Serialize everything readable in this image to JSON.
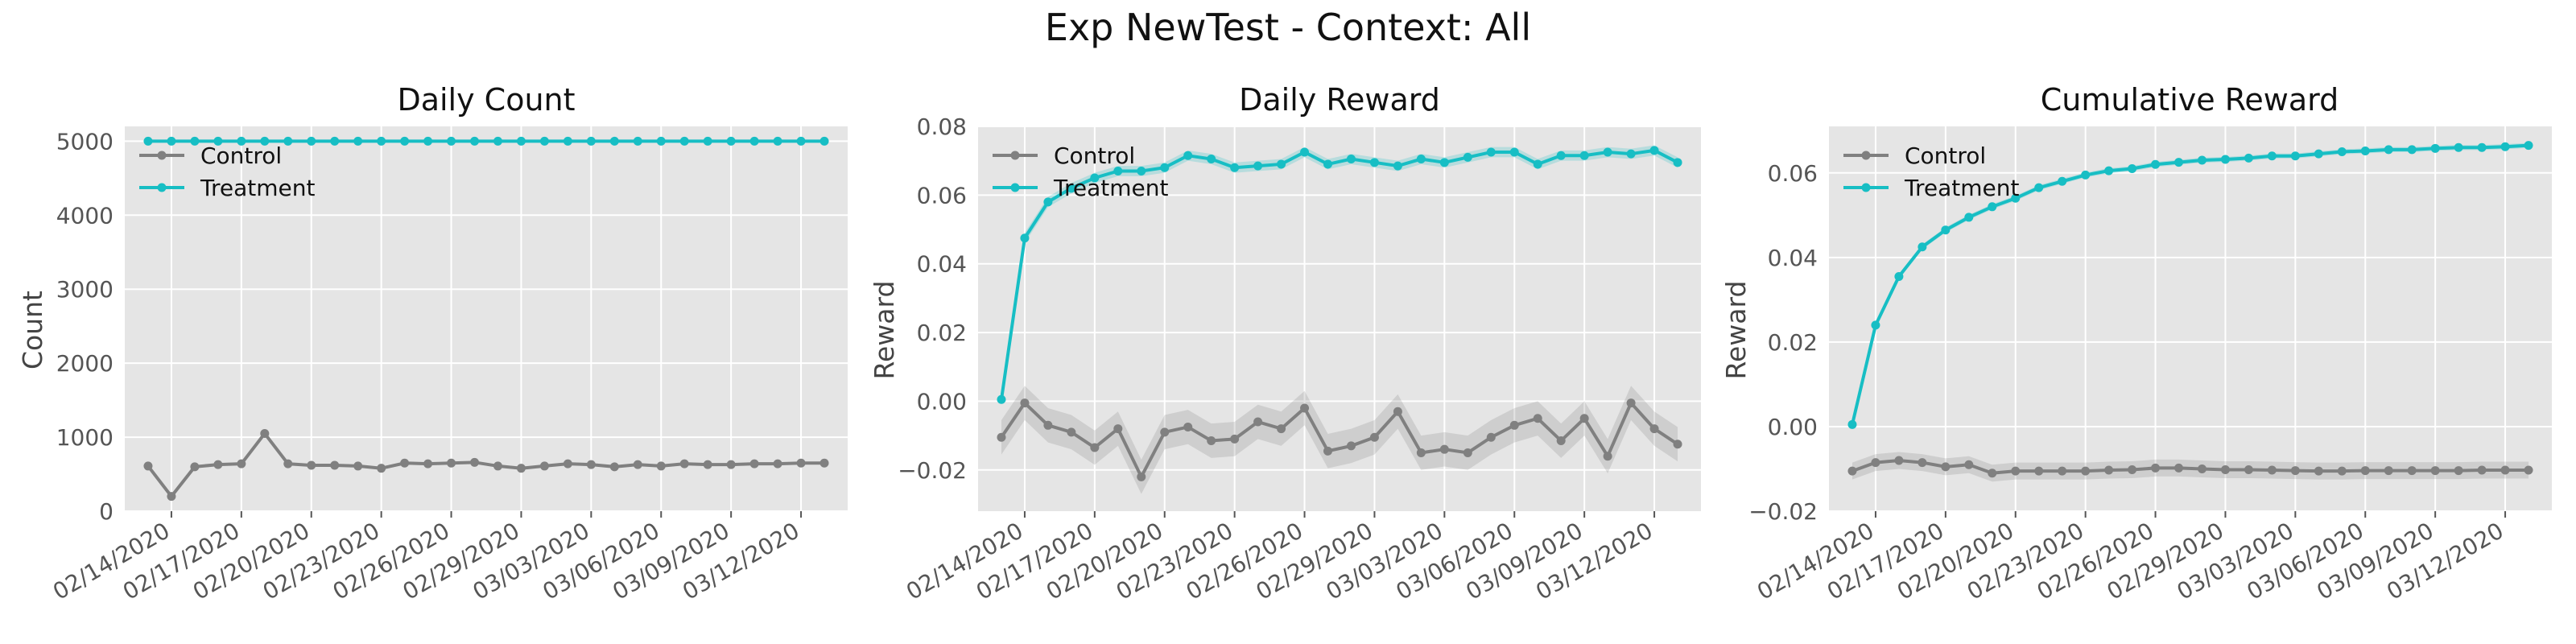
{
  "figure": {
    "title": "Exp NewTest - Context: All"
  },
  "colors": {
    "control": "#808080",
    "treatment": "#17bec4",
    "panel_bg": "#e5e5e5",
    "grid": "#ffffff"
  },
  "chart_data": [
    {
      "type": "line",
      "title": "Daily Count",
      "xlabel": "",
      "ylabel": "Count",
      "x": [
        "02/13/2020",
        "02/14/2020",
        "02/15/2020",
        "02/16/2020",
        "02/17/2020",
        "02/18/2020",
        "02/19/2020",
        "02/20/2020",
        "02/21/2020",
        "02/22/2020",
        "02/23/2020",
        "02/24/2020",
        "02/25/2020",
        "02/26/2020",
        "02/27/2020",
        "02/28/2020",
        "02/29/2020",
        "03/01/2020",
        "03/02/2020",
        "03/03/2020",
        "03/04/2020",
        "03/05/2020",
        "03/06/2020",
        "03/07/2020",
        "03/08/2020",
        "03/09/2020",
        "03/10/2020",
        "03/11/2020",
        "03/12/2020",
        "03/13/2020"
      ],
      "xticks": [
        "02/14/2020",
        "02/17/2020",
        "02/20/2020",
        "02/23/2020",
        "02/26/2020",
        "02/29/2020",
        "03/03/2020",
        "03/06/2020",
        "03/09/2020",
        "03/12/2020"
      ],
      "xlim": [
        "02/12/2020",
        "03/14/2020"
      ],
      "ylim": [
        0,
        5200
      ],
      "yticks": [
        0,
        1000,
        2000,
        3000,
        4000,
        5000
      ],
      "ytick_labels": [
        "0",
        "1000",
        "2000",
        "3000",
        "4000",
        "5000"
      ],
      "grid": true,
      "legend": "upper-left",
      "series": [
        {
          "name": "Control",
          "color_key": "control",
          "values": [
            610,
            200,
            600,
            630,
            640,
            1050,
            640,
            620,
            620,
            610,
            580,
            650,
            640,
            650,
            660,
            610,
            580,
            610,
            640,
            630,
            600,
            630,
            610,
            640,
            630,
            630,
            640,
            640,
            650,
            650
          ]
        },
        {
          "name": "Treatment",
          "color_key": "treatment",
          "values": [
            5000,
            5000,
            5000,
            5000,
            5000,
            5000,
            5000,
            5000,
            5000,
            5000,
            5000,
            5000,
            5000,
            5000,
            5000,
            5000,
            5000,
            5000,
            5000,
            5000,
            5000,
            5000,
            5000,
            5000,
            5000,
            5000,
            5000,
            5000,
            5000,
            5000
          ]
        }
      ]
    },
    {
      "type": "line",
      "title": "Daily Reward",
      "xlabel": "",
      "ylabel": "Reward",
      "x": [
        "02/13/2020",
        "02/14/2020",
        "02/15/2020",
        "02/16/2020",
        "02/17/2020",
        "02/18/2020",
        "02/19/2020",
        "02/20/2020",
        "02/21/2020",
        "02/22/2020",
        "02/23/2020",
        "02/24/2020",
        "02/25/2020",
        "02/26/2020",
        "02/27/2020",
        "02/28/2020",
        "02/29/2020",
        "03/01/2020",
        "03/02/2020",
        "03/03/2020",
        "03/04/2020",
        "03/05/2020",
        "03/06/2020",
        "03/07/2020",
        "03/08/2020",
        "03/09/2020",
        "03/10/2020",
        "03/11/2020",
        "03/12/2020",
        "03/13/2020"
      ],
      "xticks": [
        "02/14/2020",
        "02/17/2020",
        "02/20/2020",
        "02/23/2020",
        "02/26/2020",
        "02/29/2020",
        "03/03/2020",
        "03/06/2020",
        "03/09/2020",
        "03/12/2020"
      ],
      "xlim": [
        "02/12/2020",
        "03/14/2020"
      ],
      "ylim": [
        -0.032,
        0.08
      ],
      "yticks": [
        -0.02,
        0.0,
        0.02,
        0.04,
        0.06,
        0.08
      ],
      "ytick_labels": [
        "−0.02",
        "0.00",
        "0.02",
        "0.04",
        "0.06",
        "0.08"
      ],
      "grid": true,
      "legend": "upper-left",
      "series": [
        {
          "name": "Control",
          "color_key": "control",
          "values": [
            -0.0105,
            -0.0005,
            -0.007,
            -0.009,
            -0.0135,
            -0.008,
            -0.022,
            -0.009,
            -0.0075,
            -0.0115,
            -0.011,
            -0.006,
            -0.008,
            -0.002,
            -0.0145,
            -0.013,
            -0.0105,
            -0.003,
            -0.015,
            -0.014,
            -0.015,
            -0.0105,
            -0.007,
            -0.005,
            -0.0115,
            -0.005,
            -0.016,
            -0.0005,
            -0.008,
            -0.0125
          ],
          "band": 0.005
        },
        {
          "name": "Treatment",
          "color_key": "treatment",
          "values": [
            0.0005,
            0.0475,
            0.058,
            0.062,
            0.065,
            0.067,
            0.067,
            0.068,
            0.0715,
            0.0705,
            0.068,
            0.0685,
            0.069,
            0.0725,
            0.069,
            0.0705,
            0.0695,
            0.0685,
            0.0705,
            0.0695,
            0.071,
            0.0725,
            0.0725,
            0.069,
            0.0715,
            0.0715,
            0.0725,
            0.072,
            0.073,
            0.0695
          ],
          "band": 0.0015
        }
      ]
    },
    {
      "type": "line",
      "title": "Cumulative Reward",
      "xlabel": "",
      "ylabel": "Reward",
      "x": [
        "02/13/2020",
        "02/14/2020",
        "02/15/2020",
        "02/16/2020",
        "02/17/2020",
        "02/18/2020",
        "02/19/2020",
        "02/20/2020",
        "02/21/2020",
        "02/22/2020",
        "02/23/2020",
        "02/24/2020",
        "02/25/2020",
        "02/26/2020",
        "02/27/2020",
        "02/28/2020",
        "02/29/2020",
        "03/01/2020",
        "03/02/2020",
        "03/03/2020",
        "03/04/2020",
        "03/05/2020",
        "03/06/2020",
        "03/07/2020",
        "03/08/2020",
        "03/09/2020",
        "03/10/2020",
        "03/11/2020",
        "03/12/2020",
        "03/13/2020"
      ],
      "xticks": [
        "02/14/2020",
        "02/17/2020",
        "02/20/2020",
        "02/23/2020",
        "02/26/2020",
        "02/29/2020",
        "03/03/2020",
        "03/06/2020",
        "03/09/2020",
        "03/12/2020"
      ],
      "xlim": [
        "02/12/2020",
        "03/14/2020"
      ],
      "ylim": [
        -0.02,
        0.071
      ],
      "yticks": [
        -0.02,
        0.0,
        0.02,
        0.04,
        0.06
      ],
      "ytick_labels": [
        "−0.02",
        "0.00",
        "0.02",
        "0.04",
        "0.06"
      ],
      "grid": true,
      "legend": "upper-left",
      "series": [
        {
          "name": "Control",
          "color_key": "control",
          "values": [
            -0.0105,
            -0.0085,
            -0.008,
            -0.0085,
            -0.0095,
            -0.009,
            -0.011,
            -0.0105,
            -0.0105,
            -0.0105,
            -0.0105,
            -0.0103,
            -0.0102,
            -0.0098,
            -0.0098,
            -0.01,
            -0.0102,
            -0.0102,
            -0.0103,
            -0.0104,
            -0.0105,
            -0.0105,
            -0.0104,
            -0.0104,
            -0.0104,
            -0.0104,
            -0.0104,
            -0.0103,
            -0.0103,
            -0.0103
          ],
          "band": 0.002
        },
        {
          "name": "Treatment",
          "color_key": "treatment",
          "values": [
            0.0005,
            0.024,
            0.0355,
            0.0425,
            0.0465,
            0.0495,
            0.052,
            0.054,
            0.0565,
            0.058,
            0.0595,
            0.0605,
            0.061,
            0.062,
            0.0625,
            0.063,
            0.0632,
            0.0635,
            0.064,
            0.064,
            0.0645,
            0.065,
            0.0652,
            0.0655,
            0.0655,
            0.0658,
            0.066,
            0.066,
            0.0662,
            0.0665
          ],
          "band": 0.0006
        }
      ]
    }
  ]
}
